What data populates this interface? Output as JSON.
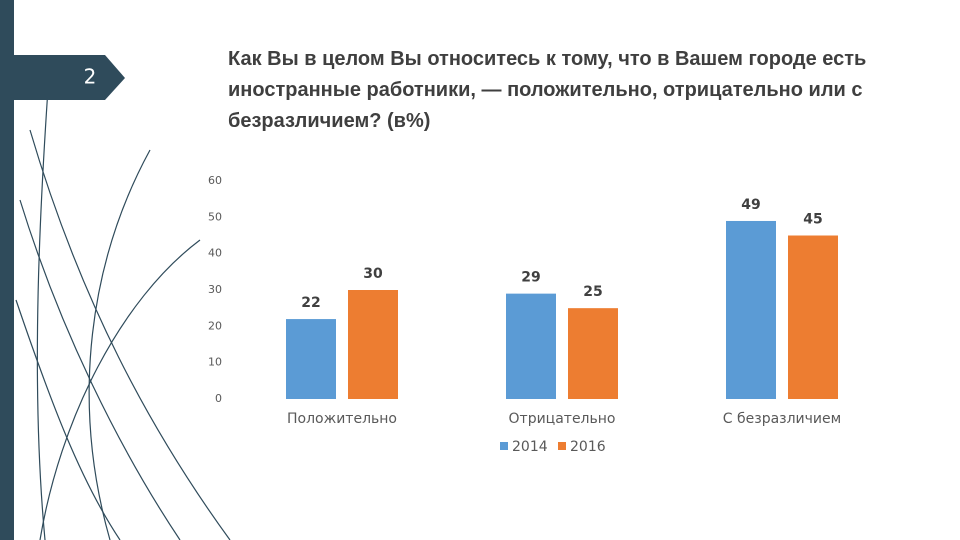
{
  "slide_number": "2",
  "chart_data": {
    "type": "bar",
    "title": "Как Вы в целом Вы относитесь к тому, что в Вашем городе есть иностранные работники, — положительно, отрицательно или с безразличием? (в%)",
    "categories": [
      "Положительно",
      "Отрицательно",
      "С безразличием"
    ],
    "series": [
      {
        "name": "2014",
        "color": "#5b9bd5",
        "values": [
          22,
          29,
          49
        ]
      },
      {
        "name": "2016",
        "color": "#ed7d31",
        "values": [
          30,
          25,
          45
        ]
      }
    ],
    "ylim": [
      0,
      60
    ],
    "yticks": [
      0,
      10,
      20,
      30,
      40,
      50,
      60
    ],
    "grid": false
  }
}
